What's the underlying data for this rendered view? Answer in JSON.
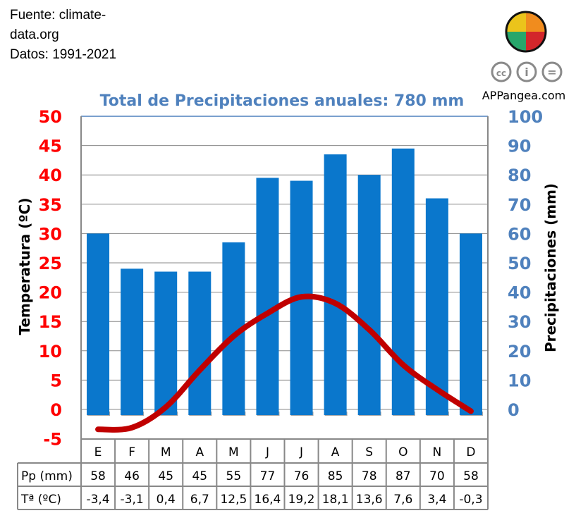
{
  "source": {
    "line1": "Fuente: climate-",
    "line2": "data.org",
    "line3": "Datos: 1991-2021"
  },
  "logo": {
    "text": "APPangea.com",
    "license_icons": [
      "cc-icon",
      "by-icon",
      "nd-icon"
    ]
  },
  "chart_data": {
    "type": "bar+line",
    "title": "Total de Precipitaciones anuales: 780 mm",
    "categories": [
      "E",
      "F",
      "M",
      "A",
      "M",
      "J",
      "J",
      "A",
      "S",
      "O",
      "N",
      "D"
    ],
    "series": [
      {
        "name": "Pp (mm)",
        "type": "bar",
        "axis": "right",
        "values": [
          58,
          46,
          45,
          45,
          55,
          77,
          76,
          85,
          78,
          87,
          70,
          58
        ],
        "labels": [
          "58",
          "46",
          "45",
          "45",
          "55",
          "77",
          "76",
          "85",
          "78",
          "87",
          "70",
          "58"
        ]
      },
      {
        "name": "Tª (ºC)",
        "type": "line",
        "axis": "left",
        "values": [
          -3.4,
          -3.1,
          0.4,
          6.7,
          12.5,
          16.4,
          19.2,
          18.1,
          13.6,
          7.6,
          3.4,
          -0.3
        ],
        "labels": [
          "-3,4",
          "-3,1",
          "0,4",
          "6,7",
          "12,5",
          "16,4",
          "19,2",
          "18,1",
          "13,6",
          "7,6",
          "3,4",
          "-0,3"
        ]
      }
    ],
    "ylabel_left": "Temperatura (ºC)",
    "ylabel_right": "Precipitaciones (mm)",
    "ylim_left": [
      -5,
      50
    ],
    "ylim_right": [
      0,
      100
    ],
    "left_ticks": [
      "50",
      "45",
      "40",
      "35",
      "30",
      "25",
      "20",
      "15",
      "10",
      "5",
      "0",
      "-5"
    ],
    "right_ticks": [
      "100",
      "90",
      "80",
      "70",
      "60",
      "50",
      "40",
      "30",
      "20",
      "10",
      "0"
    ],
    "grid": true,
    "colors": {
      "bar": "#0a77cc",
      "line": "#c00000",
      "left_axis": "#ff0000",
      "right_axis": "#4f81bd",
      "title": "#4f81bd"
    }
  }
}
